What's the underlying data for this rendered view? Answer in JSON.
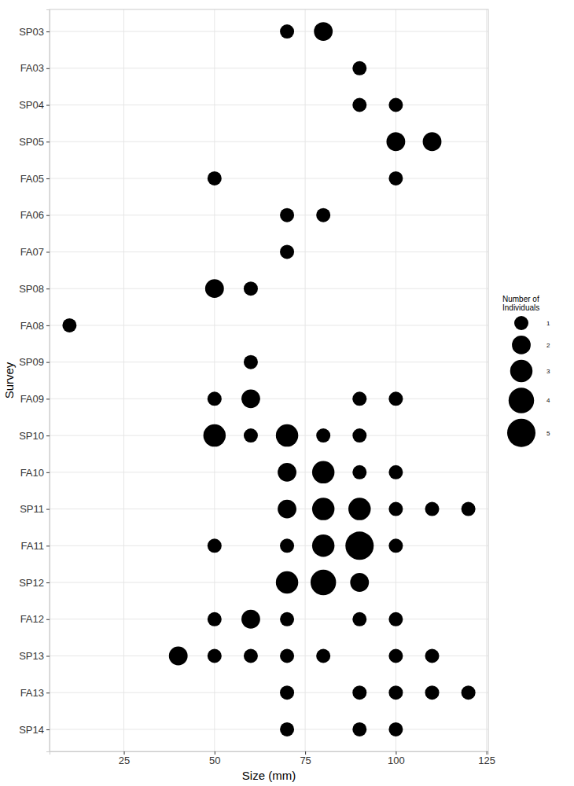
{
  "chart_data": {
    "type": "bubble",
    "x_label": "Size (mm)",
    "y_label": "Survey",
    "categories": [
      "SP03",
      "FA03",
      "SP04",
      "SP05",
      "FA05",
      "FA06",
      "FA07",
      "SP08",
      "FA08",
      "SP09",
      "FA09",
      "SP10",
      "FA10",
      "SP11",
      "FA11",
      "SP12",
      "FA12",
      "SP13",
      "FA13",
      "SP14"
    ],
    "points": {
      "x": [
        70,
        80,
        90,
        90,
        100,
        100,
        110,
        50,
        100,
        70,
        80,
        70,
        50,
        60,
        10,
        60,
        50,
        60,
        90,
        100,
        50,
        60,
        70,
        80,
        90,
        70,
        80,
        90,
        100,
        70,
        80,
        90,
        100,
        110,
        120,
        50,
        70,
        80,
        90,
        100,
        70,
        80,
        90,
        50,
        60,
        70,
        90,
        100,
        40,
        50,
        60,
        70,
        80,
        100,
        110,
        70,
        90,
        100,
        110,
        120,
        70,
        90,
        100
      ],
      "y": [
        "SP03",
        "SP03",
        "FA03",
        "SP04",
        "SP04",
        "SP05",
        "SP05",
        "FA05",
        "FA05",
        "FA06",
        "FA06",
        "FA07",
        "SP08",
        "SP08",
        "FA08",
        "SP09",
        "FA09",
        "FA09",
        "FA09",
        "FA09",
        "SP10",
        "SP10",
        "SP10",
        "SP10",
        "SP10",
        "FA10",
        "FA10",
        "FA10",
        "FA10",
        "SP11",
        "SP11",
        "SP11",
        "SP11",
        "SP11",
        "SP11",
        "FA11",
        "FA11",
        "FA11",
        "FA11",
        "FA11",
        "SP12",
        "SP12",
        "SP12",
        "FA12",
        "FA12",
        "FA12",
        "FA12",
        "FA12",
        "SP13",
        "SP13",
        "SP13",
        "SP13",
        "SP13",
        "SP13",
        "SP13",
        "FA13",
        "FA13",
        "FA13",
        "FA13",
        "FA13",
        "SP14",
        "SP14",
        "SP14"
      ],
      "size": [
        1,
        2,
        1,
        1,
        1,
        2,
        2,
        1,
        1,
        1,
        1,
        1,
        2,
        1,
        1,
        1,
        1,
        2,
        1,
        1,
        3,
        1,
        3,
        1,
        1,
        2,
        3,
        1,
        1,
        2,
        3,
        3,
        1,
        1,
        1,
        1,
        1,
        3,
        5,
        1,
        3,
        4,
        2,
        1,
        2,
        1,
        1,
        1,
        2,
        1,
        1,
        1,
        1,
        1,
        1,
        1,
        1,
        1,
        1,
        1,
        1,
        1,
        1
      ]
    },
    "color": "#000000",
    "xlim": [
      4.5,
      125.5
    ],
    "xticks": [
      25,
      50,
      75,
      100,
      125
    ],
    "grid": true,
    "size_legend": {
      "title": [
        "Number of",
        "Individuals"
      ],
      "values": [
        1,
        2,
        3,
        4,
        5
      ]
    }
  }
}
